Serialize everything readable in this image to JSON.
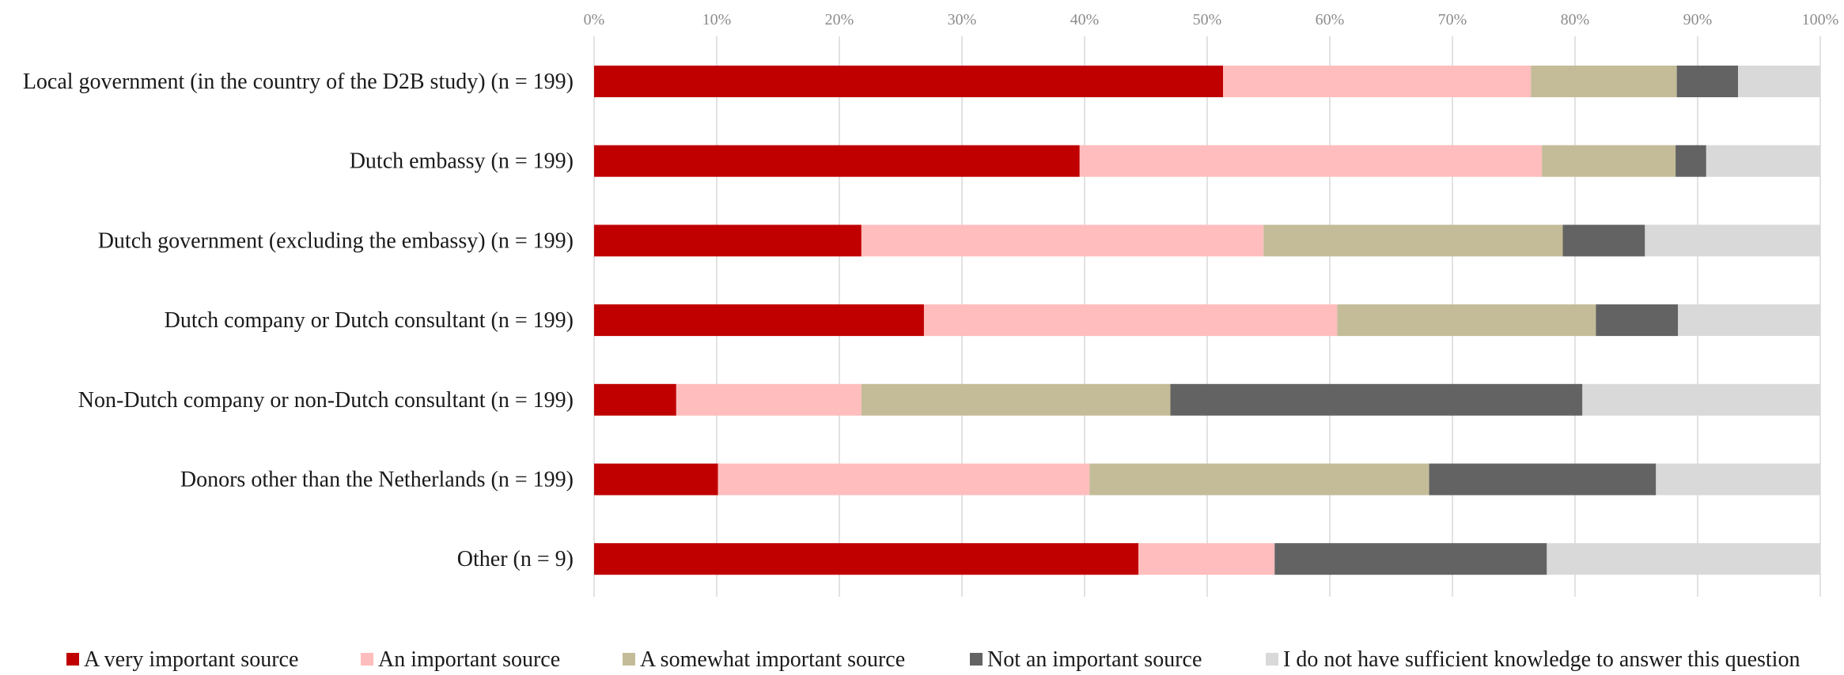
{
  "chart_data": {
    "type": "bar",
    "orientation": "horizontal",
    "stacked": true,
    "xlim": [
      0,
      100
    ],
    "x_ticks": [
      "0%",
      "10%",
      "20%",
      "30%",
      "40%",
      "50%",
      "60%",
      "70%",
      "80%",
      "90%",
      "100%"
    ],
    "grid": true,
    "legend_position": "bottom",
    "categories": [
      "Local government (in the country of the D2B study) (n = 199)",
      "Dutch embassy (n = 199)",
      "Dutch government (excluding the embassy) (n = 199)",
      "Dutch company or Dutch consultant (n = 199)",
      "Non-Dutch company or non-Dutch consultant (n = 199)",
      "Donors other than the Netherlands (n = 199)",
      "Other (n = 9)"
    ],
    "series": [
      {
        "name": "A very important source",
        "color": "#c00000",
        "values": [
          51.3,
          39.6,
          21.8,
          26.9,
          6.7,
          10.1,
          44.4
        ]
      },
      {
        "name": "An important source",
        "color": "#ffbdbd",
        "values": [
          25.1,
          37.7,
          32.8,
          33.7,
          15.1,
          30.3,
          11.1
        ]
      },
      {
        "name": "A somewhat important source",
        "color": "#c4bc98",
        "values": [
          11.9,
          10.9,
          24.4,
          21.1,
          25.2,
          27.7,
          0
        ]
      },
      {
        "name": "Not an important source",
        "color": "#636363",
        "values": [
          5.0,
          2.5,
          6.7,
          6.7,
          33.6,
          18.5,
          22.2
        ]
      },
      {
        "name": "I do not have sufficient knowledge to answer this question",
        "color": "#d9d9d9",
        "values": [
          6.7,
          9.3,
          14.3,
          11.6,
          19.4,
          13.4,
          22.3
        ]
      }
    ]
  }
}
